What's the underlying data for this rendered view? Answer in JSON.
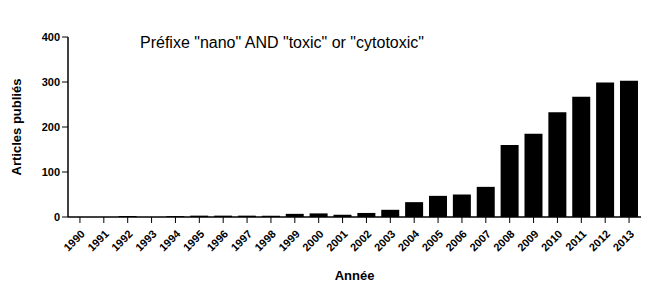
{
  "chart_data": {
    "type": "bar",
    "title": "Préfixe \"nano\" AND \"toxic\" or \"cytotoxic\"",
    "x_label": "Année",
    "y_label": "Articles publiés",
    "categories": [
      "1990",
      "1991",
      "1992",
      "1993",
      "1994",
      "1995",
      "1996",
      "1997",
      "1998",
      "1999",
      "2000",
      "2001",
      "2002",
      "2003",
      "2004",
      "2005",
      "2006",
      "2007",
      "2008",
      "2009",
      "2010",
      "2011",
      "2012",
      "2013"
    ],
    "values": [
      0,
      0,
      2,
      0,
      2,
      3,
      3,
      3,
      3,
      7,
      8,
      5,
      9,
      16,
      33,
      47,
      50,
      67,
      160,
      185,
      233,
      267,
      299,
      303
    ],
    "color": "#000000",
    "ylim": [
      0,
      400
    ],
    "yticks": [
      0,
      100,
      200,
      300,
      400
    ],
    "grid": false
  }
}
